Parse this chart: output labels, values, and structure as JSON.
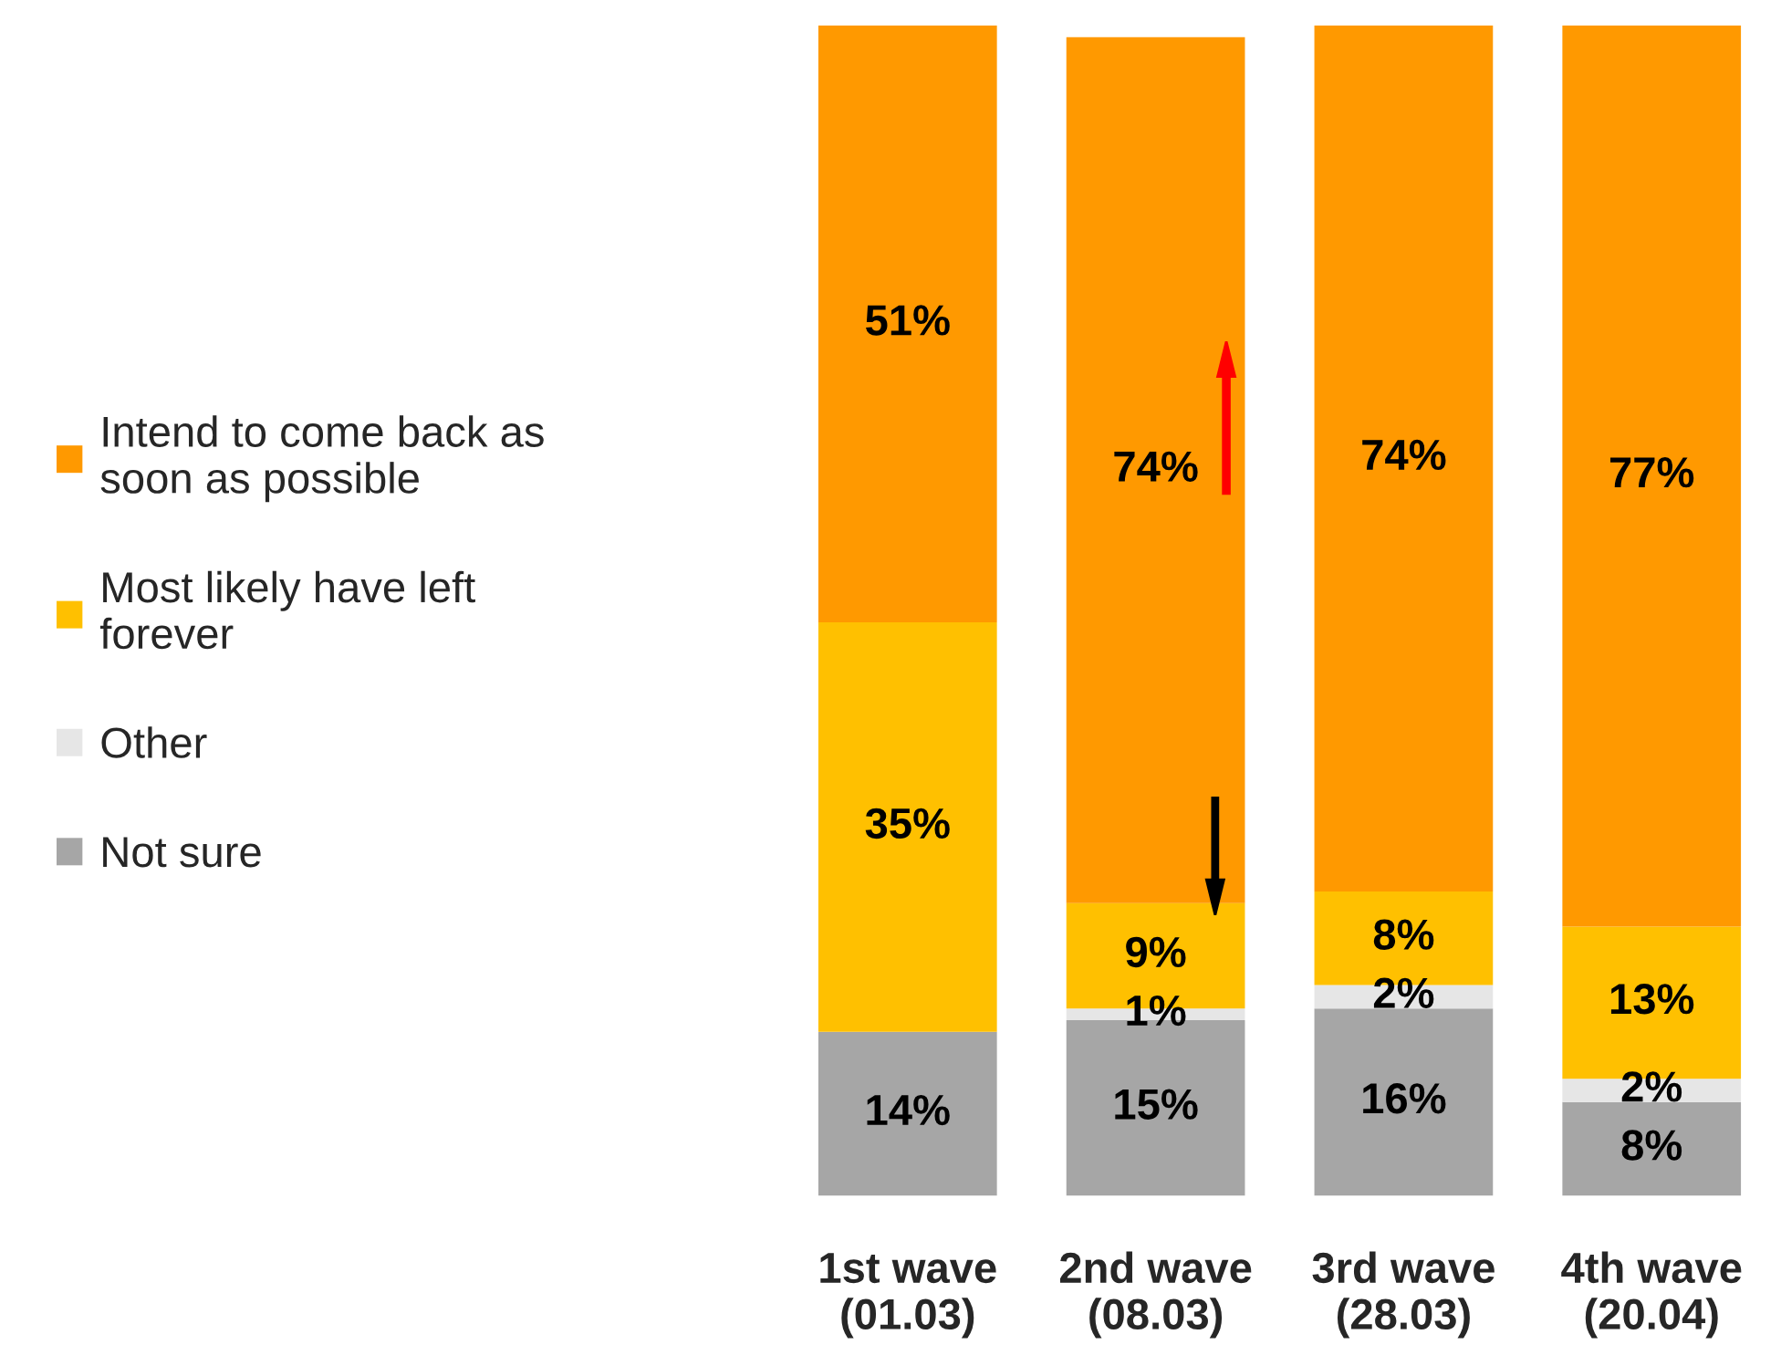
{
  "chart_data": {
    "type": "bar",
    "stacked": true,
    "legend": "left",
    "categories": [
      "1st wave\n(01.03)",
      "2nd wave\n(08.03)",
      "3rd wave\n(28.03)",
      "4th wave\n(20.04)"
    ],
    "series": [
      {
        "name": "Not sure",
        "color": "#a6a6a6",
        "values": [
          14,
          15,
          16,
          8
        ],
        "value_labels": [
          "14%",
          "15%",
          "16%",
          "8%"
        ]
      },
      {
        "name": "Other",
        "color": "#e6e6e6",
        "values": [
          null,
          1,
          2,
          2
        ],
        "value_labels": [
          null,
          "1%",
          "2%",
          "2%"
        ]
      },
      {
        "name": "Most likely have left\nforever",
        "color": "#ffc000",
        "values": [
          35,
          9,
          8,
          13
        ],
        "value_labels": [
          "35%",
          "9%",
          "8%",
          "13%"
        ]
      },
      {
        "name": "Intend to come back as\nsoon as possible",
        "color": "#ff9900",
        "values": [
          51,
          74,
          74,
          77
        ],
        "value_labels": [
          "51%",
          "74%",
          "74%",
          "77%"
        ]
      }
    ]
  }
}
